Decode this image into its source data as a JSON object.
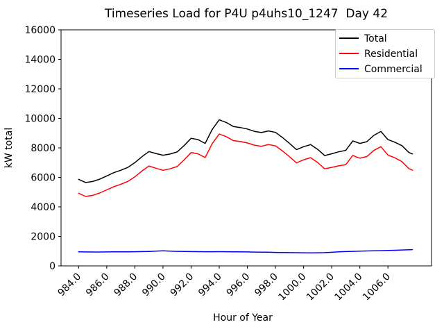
{
  "figure": {
    "background": "#ffffff"
  },
  "chart_data": {
    "type": "line",
    "title": "Timeseries Load for P4U p4uhs10_1247  Day 42",
    "xlabel": "Hour of Year",
    "ylabel": "kW total",
    "xlim": [
      982.75,
      1009.1
    ],
    "ylim": [
      0,
      16000
    ],
    "grid": false,
    "legend_position": "upper right",
    "xticks": [
      984,
      986,
      988,
      990,
      992,
      994,
      996,
      998,
      1000,
      1002,
      1004,
      1006
    ],
    "xtick_labels": [
      "984.0",
      "986.0",
      "988.0",
      "990.0",
      "992.0",
      "994.0",
      "996.0",
      "998.0",
      "1000.0",
      "1002.0",
      "1004.0",
      "1006.0"
    ],
    "yticks": [
      0,
      2000,
      4000,
      6000,
      8000,
      10000,
      12000,
      14000,
      16000
    ],
    "x": [
      984,
      984.5,
      985,
      985.5,
      986,
      986.5,
      987,
      987.5,
      988,
      988.5,
      989,
      989.5,
      990,
      990.5,
      991,
      991.5,
      992,
      992.5,
      993,
      993.5,
      994,
      994.5,
      995,
      995.5,
      996,
      996.5,
      997,
      997.5,
      998,
      998.5,
      999,
      999.5,
      1000,
      1000.5,
      1001,
      1001.5,
      1002,
      1002.5,
      1003,
      1003.5,
      1004,
      1004.5,
      1005,
      1005.5,
      1006,
      1006.5,
      1007,
      1007.5,
      1007.75
    ],
    "series": [
      {
        "name": "Total",
        "color": "#000000",
        "values": [
          5870,
          5650,
          5720,
          5880,
          6100,
          6320,
          6480,
          6680,
          7000,
          7400,
          7750,
          7620,
          7500,
          7580,
          7720,
          8150,
          8650,
          8560,
          8300,
          9250,
          9900,
          9720,
          9450,
          9380,
          9280,
          9120,
          9040,
          9150,
          9050,
          8700,
          8300,
          7880,
          8080,
          8220,
          7900,
          7480,
          7600,
          7730,
          7830,
          8470,
          8300,
          8420,
          8845,
          9110,
          8560,
          8380,
          8150,
          7680,
          7590
        ]
      },
      {
        "name": "Residential",
        "color": "#ff0000",
        "values": [
          4920,
          4705,
          4780,
          4940,
          5155,
          5370,
          5530,
          5725,
          6040,
          6430,
          6770,
          6620,
          6480,
          6580,
          6735,
          7175,
          7680,
          7595,
          7340,
          8290,
          8935,
          8760,
          8495,
          8430,
          8335,
          8185,
          8110,
          8225,
          8135,
          7795,
          7400,
          6985,
          7190,
          7335,
          7010,
          6580,
          6680,
          6780,
          6860,
          7485,
          7300,
          7410,
          7825,
          8080,
          7515,
          7320,
          7070,
          6585,
          6490
        ]
      },
      {
        "name": "Commercial",
        "color": "#0000ff",
        "values": [
          950,
          945,
          940,
          940,
          945,
          950,
          950,
          955,
          960,
          970,
          980,
          1000,
          1020,
          1000,
          985,
          975,
          970,
          965,
          960,
          960,
          965,
          960,
          955,
          950,
          945,
          935,
          930,
          925,
          915,
          905,
          900,
          895,
          890,
          885,
          890,
          900,
          920,
          950,
          970,
          985,
          1000,
          1010,
          1020,
          1030,
          1045,
          1060,
          1080,
          1095,
          1100
        ]
      }
    ]
  }
}
